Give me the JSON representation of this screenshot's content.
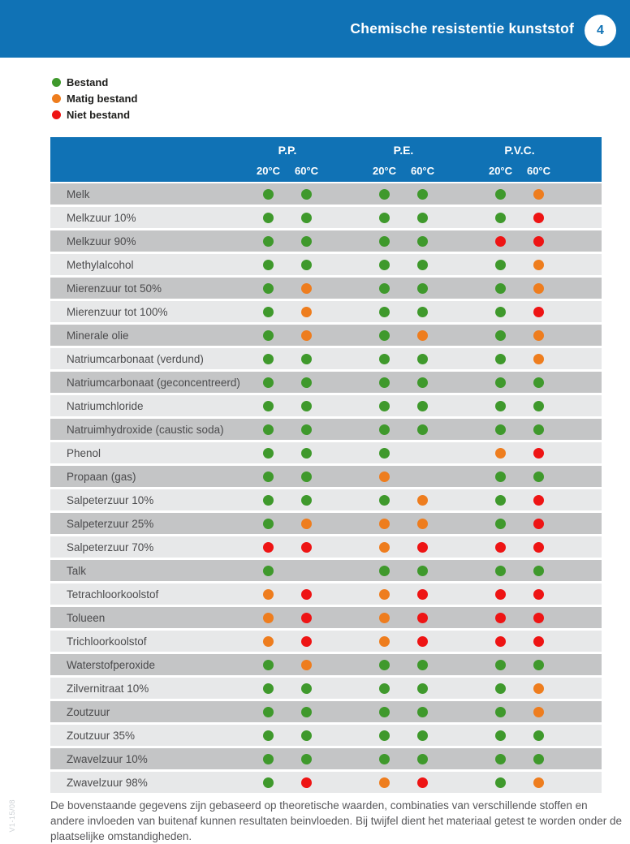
{
  "header": {
    "title": "Chemische resistentie kunststof",
    "page_number": "4"
  },
  "colors": {
    "header_blue": "#1072b5",
    "bestand": "#3f992c",
    "matig": "#ee7d1e",
    "niet": "#ee1414",
    "row_dark": "#c4c5c6",
    "row_light": "#e7e8e9"
  },
  "legend": {
    "items": [
      {
        "label": "Bestand",
        "status": "bestand"
      },
      {
        "label": "Matig bestand",
        "status": "matig"
      },
      {
        "label": "Niet bestand",
        "status": "niet"
      }
    ]
  },
  "table": {
    "groups": [
      {
        "label": "P.P."
      },
      {
        "label": "P.E."
      },
      {
        "label": "P.V.C."
      }
    ],
    "temps": [
      "20°C",
      "60°C",
      "20°C",
      "60°C",
      "20°C",
      "60°C"
    ],
    "rows": [
      {
        "label": "Melk",
        "dots": [
          "bestand",
          "bestand",
          "bestand",
          "bestand",
          "bestand",
          "matig"
        ]
      },
      {
        "label": "Melkzuur 10%",
        "dots": [
          "bestand",
          "bestand",
          "bestand",
          "bestand",
          "bestand",
          "niet"
        ]
      },
      {
        "label": "Melkzuur 90%",
        "dots": [
          "bestand",
          "bestand",
          "bestand",
          "bestand",
          "niet",
          "niet"
        ]
      },
      {
        "label": "Methylalcohol",
        "dots": [
          "bestand",
          "bestand",
          "bestand",
          "bestand",
          "bestand",
          "matig"
        ]
      },
      {
        "label": "Mierenzuur tot 50%",
        "dots": [
          "bestand",
          "matig",
          "bestand",
          "bestand",
          "bestand",
          "matig"
        ]
      },
      {
        "label": "Mierenzuur tot 100%",
        "dots": [
          "bestand",
          "matig",
          "bestand",
          "bestand",
          "bestand",
          "niet"
        ]
      },
      {
        "label": "Minerale olie",
        "dots": [
          "bestand",
          "matig",
          "bestand",
          "matig",
          "bestand",
          "matig"
        ]
      },
      {
        "label": "Natriumcarbonaat (verdund)",
        "dots": [
          "bestand",
          "bestand",
          "bestand",
          "bestand",
          "bestand",
          "matig"
        ]
      },
      {
        "label": "Natriumcarbonaat (geconcentreerd)",
        "dots": [
          "bestand",
          "bestand",
          "bestand",
          "bestand",
          "bestand",
          "bestand"
        ]
      },
      {
        "label": "Natriumchloride",
        "dots": [
          "bestand",
          "bestand",
          "bestand",
          "bestand",
          "bestand",
          "bestand"
        ]
      },
      {
        "label": "Natruimhydroxide (caustic soda)",
        "dots": [
          "bestand",
          "bestand",
          "bestand",
          "bestand",
          "bestand",
          "bestand"
        ]
      },
      {
        "label": "Phenol",
        "dots": [
          "bestand",
          "bestand",
          "bestand",
          "",
          "matig",
          "niet"
        ]
      },
      {
        "label": "Propaan (gas)",
        "dots": [
          "bestand",
          "bestand",
          "matig",
          "",
          "bestand",
          "bestand"
        ]
      },
      {
        "label": "Salpeterzuur 10%",
        "dots": [
          "bestand",
          "bestand",
          "bestand",
          "matig",
          "bestand",
          "niet"
        ]
      },
      {
        "label": "Salpeterzuur 25%",
        "dots": [
          "bestand",
          "matig",
          "matig",
          "matig",
          "bestand",
          "niet"
        ]
      },
      {
        "label": "Salpeterzuur 70%",
        "dots": [
          "niet",
          "niet",
          "matig",
          "niet",
          "niet",
          "niet"
        ]
      },
      {
        "label": "Talk",
        "dots": [
          "bestand",
          "",
          "bestand",
          "bestand",
          "bestand",
          "bestand"
        ]
      },
      {
        "label": "Tetrachloorkoolstof",
        "dots": [
          "matig",
          "niet",
          "matig",
          "niet",
          "niet",
          "niet"
        ]
      },
      {
        "label": "Tolueen",
        "dots": [
          "matig",
          "niet",
          "matig",
          "niet",
          "niet",
          "niet"
        ]
      },
      {
        "label": "Trichloorkoolstof",
        "dots": [
          "matig",
          "niet",
          "matig",
          "niet",
          "niet",
          "niet"
        ]
      },
      {
        "label": "Waterstofperoxide",
        "dots": [
          "bestand",
          "matig",
          "bestand",
          "bestand",
          "bestand",
          "bestand"
        ]
      },
      {
        "label": "Zilvernitraat 10%",
        "dots": [
          "bestand",
          "bestand",
          "bestand",
          "bestand",
          "bestand",
          "matig"
        ]
      },
      {
        "label": "Zoutzuur",
        "dots": [
          "bestand",
          "bestand",
          "bestand",
          "bestand",
          "bestand",
          "matig"
        ]
      },
      {
        "label": "Zoutzuur 35%",
        "dots": [
          "bestand",
          "bestand",
          "bestand",
          "bestand",
          "bestand",
          "bestand"
        ]
      },
      {
        "label": "Zwavelzuur 10%",
        "dots": [
          "bestand",
          "bestand",
          "bestand",
          "bestand",
          "bestand",
          "bestand"
        ]
      },
      {
        "label": "Zwavelzuur 98%",
        "dots": [
          "bestand",
          "niet",
          "matig",
          "niet",
          "bestand",
          "matig"
        ]
      }
    ]
  },
  "footer": {
    "note": "De bovenstaande gegevens zijn gebaseerd op theoretische waarden, combinaties van verschillende stoffen en andere invloeden van buitenaf kunnen resultaten beinvloeden. Bij twijfel dient het materiaal getest te worden onder de plaatselijke omstandigheden."
  },
  "side_label": "V1-15/08"
}
